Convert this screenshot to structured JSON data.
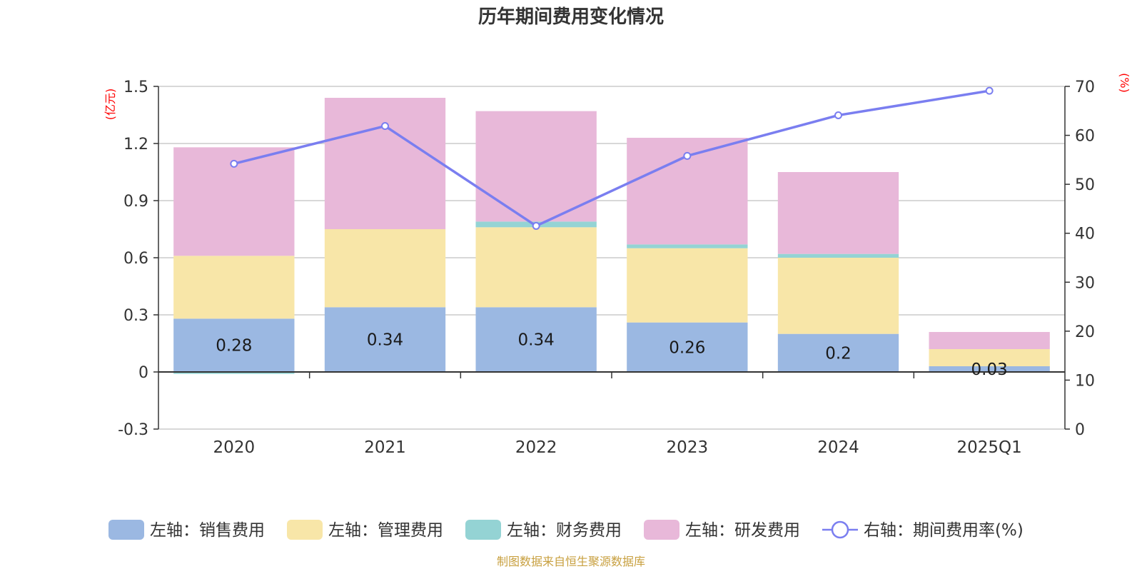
{
  "chart_data": {
    "type": "bar",
    "title": "历年期间费用变化情况",
    "categories": [
      "2020",
      "2021",
      "2022",
      "2023",
      "2024",
      "2025Q1"
    ],
    "left_axis": {
      "unit_label": "(亿元)",
      "range": [
        -0.3,
        1.5
      ],
      "ticks": [
        1.5,
        1.2,
        0.9,
        0.6,
        0.3,
        0,
        -0.3
      ],
      "tick_labels": [
        "1.5",
        "1.2",
        "0.9",
        "0.6",
        "0.3",
        "0",
        "-0.3"
      ]
    },
    "right_axis": {
      "unit_label": "(%)",
      "range": [
        0,
        70
      ],
      "ticks": [
        70,
        60,
        50,
        40,
        30,
        20,
        10,
        0
      ],
      "tick_labels": [
        "70",
        "60",
        "50",
        "40",
        "30",
        "20",
        "10",
        "0"
      ]
    },
    "series": [
      {
        "name": "左轴：销售费用",
        "type": "bar",
        "axis": "left",
        "color": "#9bb8e2",
        "values": [
          0.28,
          0.34,
          0.34,
          0.26,
          0.2,
          0.03
        ],
        "labels": [
          "0.28",
          "0.34",
          "0.34",
          "0.26",
          "0.2",
          "0.03"
        ]
      },
      {
        "name": "左轴：管理费用",
        "type": "bar",
        "axis": "left",
        "color": "#f8e6a8",
        "values": [
          0.33,
          0.41,
          0.42,
          0.39,
          0.4,
          0.09
        ]
      },
      {
        "name": "左轴：财务费用",
        "type": "bar",
        "axis": "left",
        "color": "#94d3d4",
        "values": [
          -0.01,
          0.0,
          0.03,
          0.02,
          0.02,
          0.0
        ]
      },
      {
        "name": "左轴：研发费用",
        "type": "bar",
        "axis": "left",
        "color": "#e8b8d9",
        "values": [
          0.57,
          0.69,
          0.58,
          0.56,
          0.43,
          0.09
        ]
      },
      {
        "name": "右轴：期间费用率(%)",
        "type": "line",
        "axis": "right",
        "color": "#7a7ef0",
        "values": [
          54.2,
          61.9,
          41.5,
          55.8,
          64.1,
          69.1
        ]
      }
    ],
    "legend_position": "bottom",
    "grid": true
  },
  "footer": {
    "source": "制图数据来自恒生聚源数据库"
  },
  "colors": {
    "title": "#333333",
    "axis_unit": "#ff0000",
    "grid": "#cccccc",
    "axis_line": "#333333",
    "tick_text": "#333333",
    "source_text": "#c8a040"
  }
}
